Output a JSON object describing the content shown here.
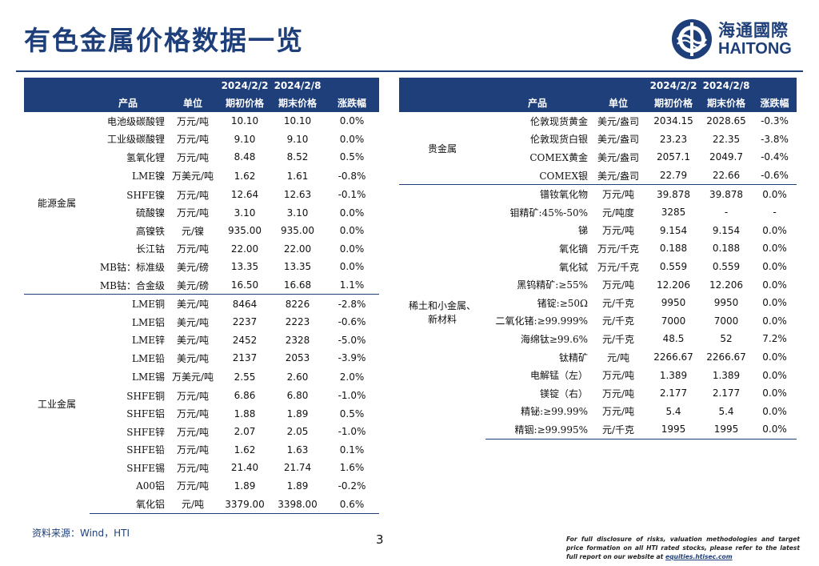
{
  "title": "有色金属价格数据一览",
  "logo": {
    "cn": "海通國際",
    "en": "HAITONG"
  },
  "headers": {
    "date_start": "2024/2/2",
    "date_end": "2024/2/8",
    "product": "产品",
    "unit": "单位",
    "open_price": "期初价格",
    "close_price": "期末价格",
    "change": "涨跌幅"
  },
  "left_groups": [
    {
      "name": "能源金属",
      "rows": [
        {
          "product": "电池级碳酸锂",
          "unit": "万元/吨",
          "open": "10.10",
          "close": "10.10",
          "change": "0.0%"
        },
        {
          "product": "工业级碳酸锂",
          "unit": "万元/吨",
          "open": "9.10",
          "close": "9.10",
          "change": "0.0%"
        },
        {
          "product": "氢氧化锂",
          "unit": "万元/吨",
          "open": "8.48",
          "close": "8.52",
          "change": "0.5%"
        },
        {
          "product": "LME镍",
          "unit": "万美元/吨",
          "open": "1.62",
          "close": "1.61",
          "change": "-0.8%"
        },
        {
          "product": "SHFE镍",
          "unit": "万元/吨",
          "open": "12.64",
          "close": "12.63",
          "change": "-0.1%"
        },
        {
          "product": "硫酸镍",
          "unit": "万元/吨",
          "open": "3.10",
          "close": "3.10",
          "change": "0.0%"
        },
        {
          "product": "高镍铁",
          "unit": "元/镍",
          "open": "935.00",
          "close": "935.00",
          "change": "0.0%"
        },
        {
          "product": "长江钴",
          "unit": "万元/吨",
          "open": "22.00",
          "close": "22.00",
          "change": "0.0%"
        },
        {
          "product": "MB钴：标准级",
          "unit": "美元/磅",
          "open": "13.35",
          "close": "13.35",
          "change": "0.0%"
        },
        {
          "product": "MB钴：合金级",
          "unit": "美元/磅",
          "open": "16.50",
          "close": "16.68",
          "change": "1.1%"
        }
      ]
    },
    {
      "name": "工业金属",
      "rows": [
        {
          "product": "LME铜",
          "unit": "美元/吨",
          "open": "8464",
          "close": "8226",
          "change": "-2.8%"
        },
        {
          "product": "LME铝",
          "unit": "美元/吨",
          "open": "2237",
          "close": "2223",
          "change": "-0.6%"
        },
        {
          "product": "LME锌",
          "unit": "美元/吨",
          "open": "2452",
          "close": "2328",
          "change": "-5.0%"
        },
        {
          "product": "LME铅",
          "unit": "美元/吨",
          "open": "2137",
          "close": "2053",
          "change": "-3.9%"
        },
        {
          "product": "LME锡",
          "unit": "万美元/吨",
          "open": "2.55",
          "close": "2.60",
          "change": "2.0%"
        },
        {
          "product": "SHFE铜",
          "unit": "万元/吨",
          "open": "6.86",
          "close": "6.80",
          "change": "-1.0%"
        },
        {
          "product": "SHFE铝",
          "unit": "万元/吨",
          "open": "1.88",
          "close": "1.89",
          "change": "0.5%"
        },
        {
          "product": "SHFE锌",
          "unit": "万元/吨",
          "open": "2.07",
          "close": "2.05",
          "change": "-1.0%"
        },
        {
          "product": "SHFE铅",
          "unit": "万元/吨",
          "open": "1.62",
          "close": "1.63",
          "change": "0.1%"
        },
        {
          "product": "SHFE锡",
          "unit": "万元/吨",
          "open": "21.40",
          "close": "21.74",
          "change": "1.6%"
        },
        {
          "product": "A00铝",
          "unit": "万元/吨",
          "open": "1.89",
          "close": "1.89",
          "change": "-0.2%"
        },
        {
          "product": "氧化铝",
          "unit": "元/吨",
          "open": "3379.00",
          "close": "3398.00",
          "change": "0.6%"
        }
      ]
    }
  ],
  "right_groups": [
    {
      "name": "贵金属",
      "rows": [
        {
          "product": "伦敦现货黄金",
          "unit": "美元/盎司",
          "open": "2034.15",
          "close": "2028.65",
          "change": "-0.3%"
        },
        {
          "product": "伦敦现货白银",
          "unit": "美元/盎司",
          "open": "23.23",
          "close": "22.35",
          "change": "-3.8%"
        },
        {
          "product": "COMEX黄金",
          "unit": "美元/盎司",
          "open": "2057.1",
          "close": "2049.7",
          "change": "-0.4%"
        },
        {
          "product": "COMEX银",
          "unit": "美元/盎司",
          "open": "22.79",
          "close": "22.66",
          "change": "-0.6%"
        }
      ]
    },
    {
      "name": "稀土和小金属、新材料",
      "name_line1": "稀土和小金属、",
      "name_line2": "新材料",
      "rows": [
        {
          "product": "镨钕氧化物",
          "unit": "万元/吨",
          "open": "39.878",
          "close": "39.878",
          "change": "0.0%"
        },
        {
          "product": "钼精矿:45%-50%",
          "unit": "元/吨度",
          "open": "3285",
          "close": "-",
          "change": "-"
        },
        {
          "product": "锑",
          "unit": "万元/吨",
          "open": "9.154",
          "close": "9.154",
          "change": "0.0%"
        },
        {
          "product": "氧化镝",
          "unit": "万元/千克",
          "open": "0.188",
          "close": "0.188",
          "change": "0.0%"
        },
        {
          "product": "氧化铽",
          "unit": "万元/千克",
          "open": "0.559",
          "close": "0.559",
          "change": "0.0%"
        },
        {
          "product": "黑钨精矿:≥55%",
          "unit": "万元/吨",
          "open": "12.206",
          "close": "12.206",
          "change": "0.0%"
        },
        {
          "product": "锗锭:≥50Ω",
          "unit": "元/千克",
          "open": "9950",
          "close": "9950",
          "change": "0.0%"
        },
        {
          "product": "二氧化锗:≥99.999%",
          "unit": "元/千克",
          "open": "7000",
          "close": "7000",
          "change": "0.0%"
        },
        {
          "product": "海绵钛≥99.6%",
          "unit": "元/千克",
          "open": "48.5",
          "close": "52",
          "change": "7.2%"
        },
        {
          "product": "钛精矿",
          "unit": "元/吨",
          "open": "2266.67",
          "close": "2266.67",
          "change": "0.0%"
        },
        {
          "product": "电解锰（左）",
          "unit": "万元/吨",
          "open": "1.389",
          "close": "1.389",
          "change": "0.0%"
        },
        {
          "product": "镁锭（右）",
          "unit": "万元/吨",
          "open": "2.177",
          "close": "2.177",
          "change": "0.0%"
        },
        {
          "product": "精铋:≥99.99%",
          "unit": "万元/吨",
          "open": "5.4",
          "close": "5.4",
          "change": "0.0%"
        },
        {
          "product": "精铟:≥99.995%",
          "unit": "元/千克",
          "open": "1995",
          "close": "1995",
          "change": "0.0%"
        }
      ]
    }
  ],
  "footer": {
    "source": "资料来源：Wind，HTI",
    "page": "3",
    "disclaimer": "For full disclosure of risks, valuation methodologies and target price formation on all HTI rated stocks, please refer to the latest full report on our website at ",
    "link": "equities.htisec.com"
  },
  "colors": {
    "brand": "#1f3f7a"
  }
}
